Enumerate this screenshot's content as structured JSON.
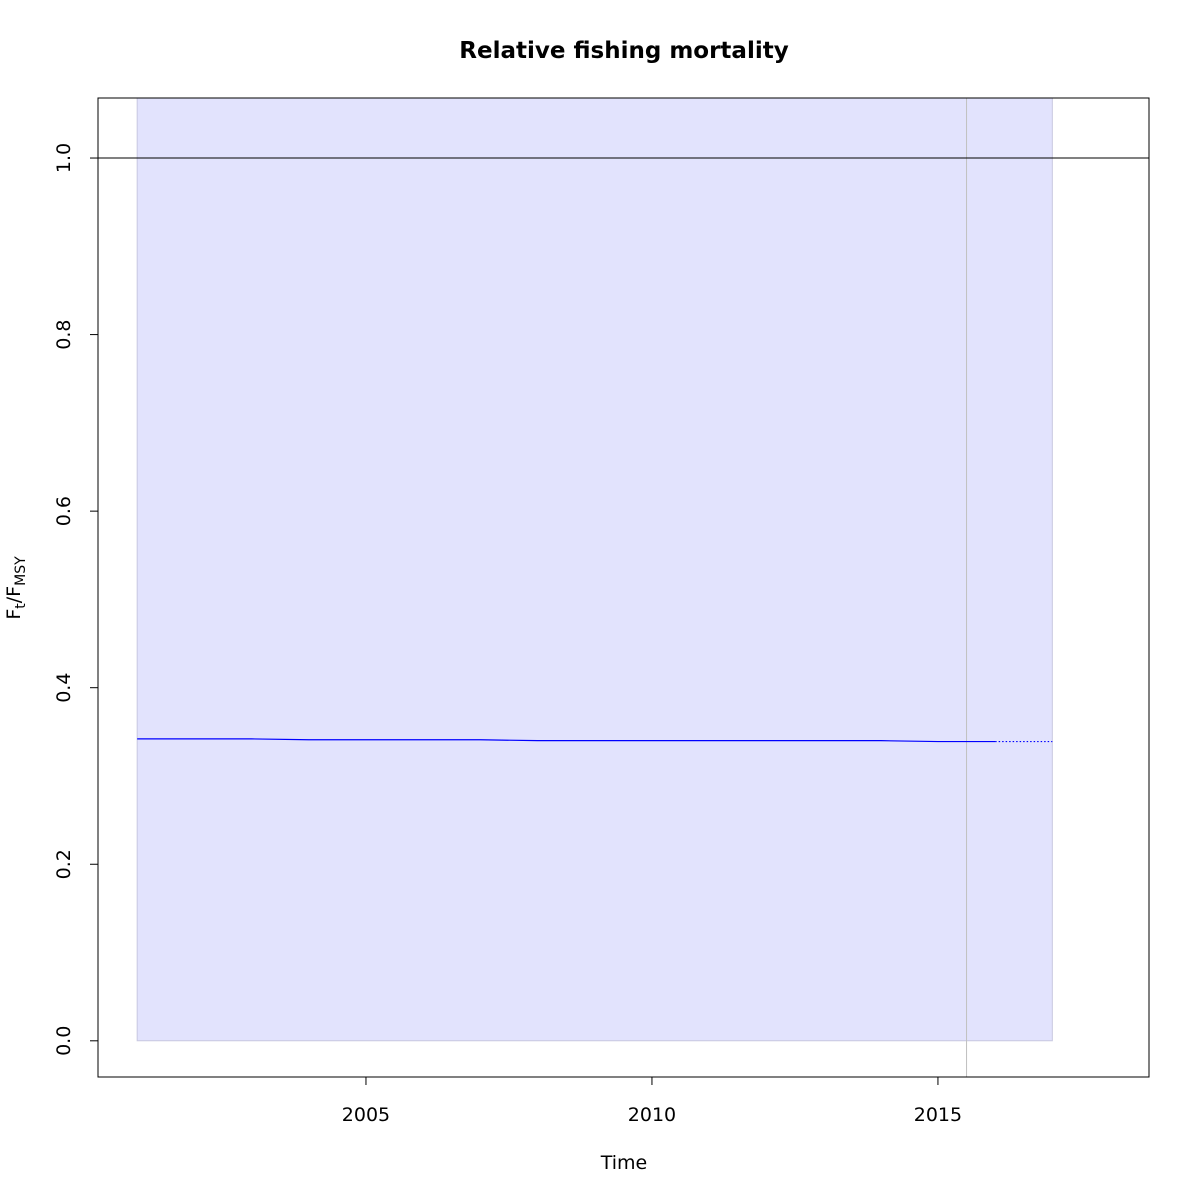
{
  "chart_data": {
    "type": "line",
    "title": "Relative fishing mortality",
    "xlabel": "Time",
    "ylabel": [
      "F",
      "t",
      "/F",
      "MSY"
    ],
    "x": [
      2001,
      2002,
      2003,
      2004,
      2005,
      2006,
      2007,
      2008,
      2009,
      2010,
      2011,
      2012,
      2013,
      2014,
      2015,
      2016,
      2017
    ],
    "series": [
      {
        "color": "#0000ff",
        "style": "solid",
        "values": [
          0.342,
          0.342,
          0.342,
          0.341,
          0.341,
          0.341,
          0.341,
          0.34,
          0.34,
          0.34,
          0.34,
          0.34,
          0.34,
          0.34,
          0.339,
          0.339,
          null
        ]
      },
      {
        "color": "#0000ff",
        "style": "dotted",
        "values": [
          null,
          null,
          null,
          null,
          null,
          null,
          null,
          null,
          null,
          null,
          null,
          null,
          null,
          null,
          null,
          0.339,
          0.339
        ]
      }
    ],
    "band": {
      "color": "#e2e3fd",
      "lower": [
        0,
        0,
        0,
        0,
        0,
        0,
        0,
        0,
        0,
        0,
        0,
        0,
        0,
        0,
        0,
        0,
        0
      ],
      "upper": [
        1.07,
        1.07,
        1.07,
        1.07,
        1.07,
        1.07,
        1.07,
        1.07,
        1.07,
        1.07,
        1.07,
        1.07,
        1.07,
        1.07,
        1.07,
        1.07,
        1.07
      ]
    },
    "hlines": [
      1
    ],
    "vlines": [
      2015.5
    ],
    "xlim": [
      2000.315,
      2018.69
    ],
    "ylim": [
      -0.041,
      1.068
    ],
    "xticks": [
      2005,
      2010,
      2015
    ],
    "yticks": [
      {
        "value": 0,
        "label": "0.0"
      },
      0.2,
      0.4,
      0.6,
      0.8,
      {
        "value": 1,
        "label": "1.0"
      }
    ],
    "grid": false
  }
}
